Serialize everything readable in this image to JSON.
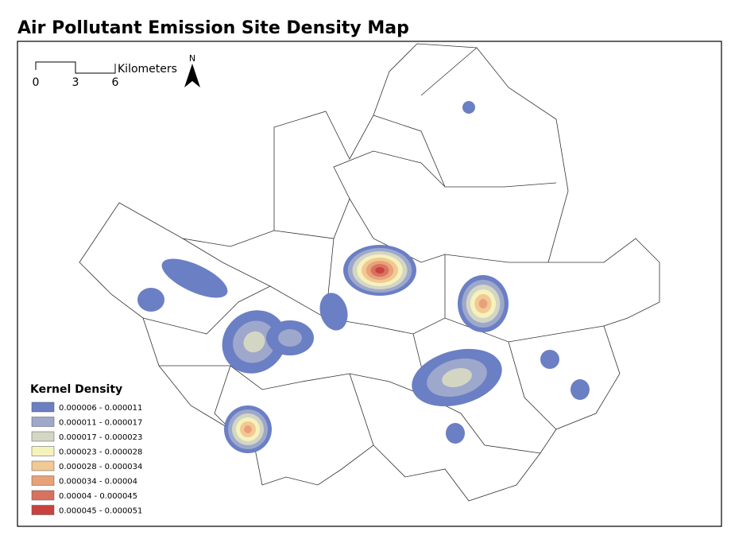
{
  "title": "Air Pollutant Emission Site Density Map",
  "scale_bar": {
    "labels": [
      "0",
      "3",
      "6"
    ],
    "unit": "Kilometers"
  },
  "north_arrow": "N",
  "legend": {
    "title": "Kernel Density",
    "items": [
      {
        "label": "0.000006 - 0.000011",
        "color": "#6b7fc4"
      },
      {
        "label": "0.000011 - 0.000017",
        "color": "#9ea8cc"
      },
      {
        "label": "0.000017 - 0.000023",
        "color": "#d4d6c4"
      },
      {
        "label": "0.000023 - 0.000028",
        "color": "#f6f2bc"
      },
      {
        "label": "0.000028 - 0.000034",
        "color": "#f2c894"
      },
      {
        "label": "0.000034 - 0.00004",
        "color": "#e8a27a"
      },
      {
        "label": "0.00004 - 0.000045",
        "color": "#d8725e"
      },
      {
        "label": "0.000045 - 0.000051",
        "color": "#c8423e"
      }
    ]
  }
}
